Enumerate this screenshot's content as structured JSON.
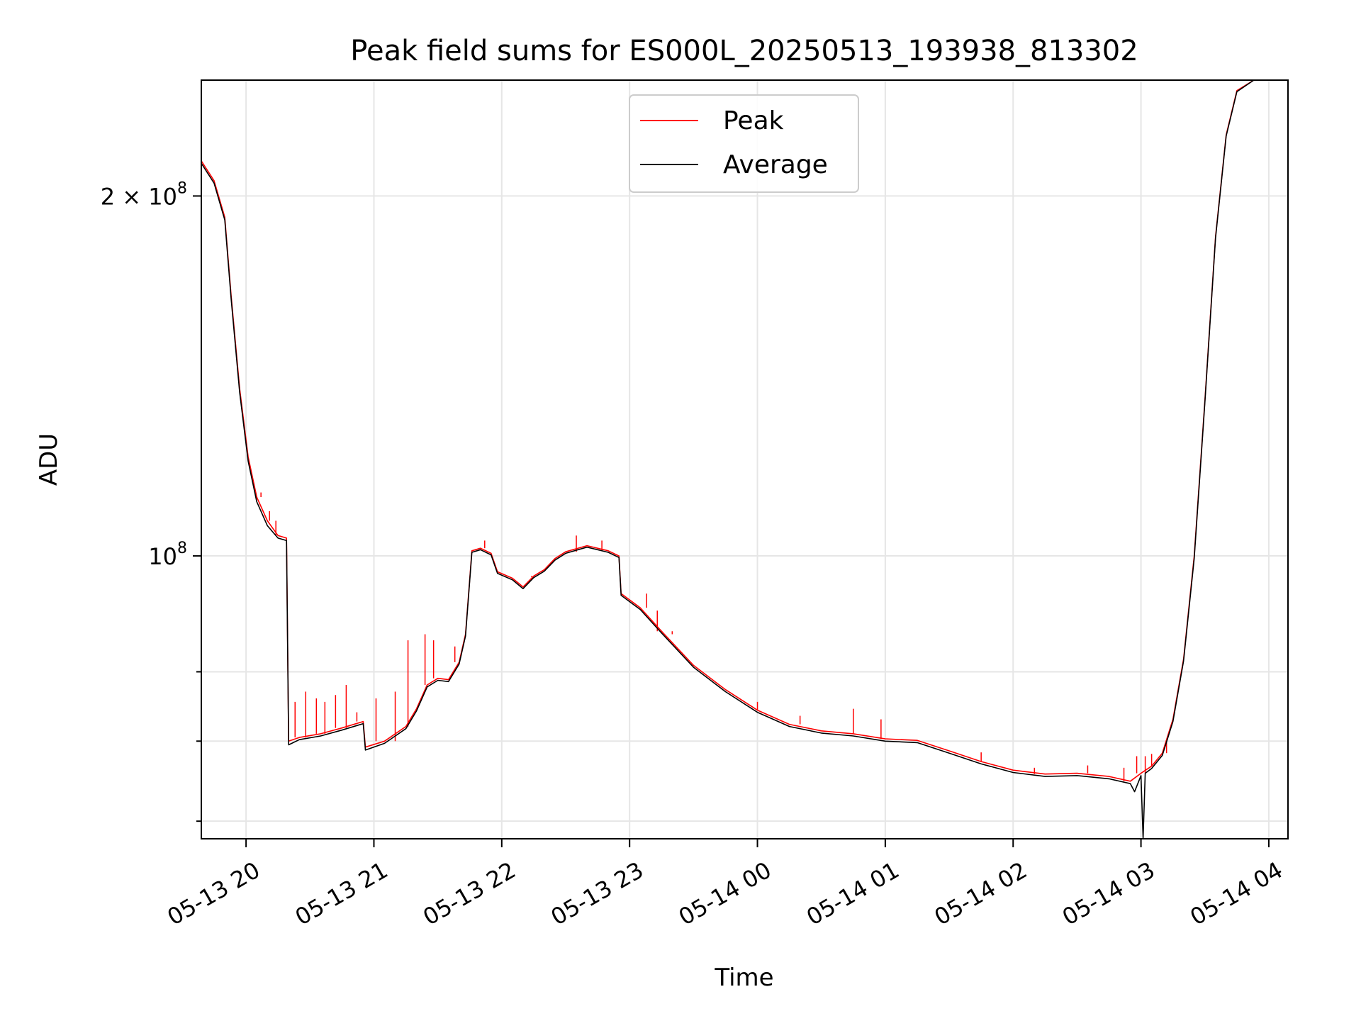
{
  "chart_data": {
    "type": "line",
    "title": "Peak field sums for ES000L_20250513_193938_813302",
    "xlabel": "Time",
    "ylabel": "ADU",
    "y_scale": "log",
    "grid": true,
    "legend_position": "top-center",
    "xlim": [
      "2025-05-13T19:39",
      "2025-05-14T04:09"
    ],
    "ylim": [
      58000000,
      250000000
    ],
    "x_ticks": [
      {
        "t": "2025-05-13T20:00",
        "label": "05-13 20"
      },
      {
        "t": "2025-05-13T21:00",
        "label": "05-13 21"
      },
      {
        "t": "2025-05-13T22:00",
        "label": "05-13 22"
      },
      {
        "t": "2025-05-13T23:00",
        "label": "05-13 23"
      },
      {
        "t": "2025-05-14T00:00",
        "label": "05-14 00"
      },
      {
        "t": "2025-05-14T01:00",
        "label": "05-14 01"
      },
      {
        "t": "2025-05-14T02:00",
        "label": "05-14 02"
      },
      {
        "t": "2025-05-14T03:00",
        "label": "05-14 03"
      },
      {
        "t": "2025-05-14T04:00",
        "label": "05-14 04"
      }
    ],
    "y_ticks": [
      {
        "value": 200000000,
        "base": "2 × 10",
        "exp": "8"
      },
      {
        "value": 100000000,
        "base": "10",
        "exp": "8"
      }
    ],
    "y_minor_ticks": [
      60000000,
      70000000,
      80000000
    ],
    "series": [
      {
        "name": "Peak",
        "color": "#ff0000",
        "points": [
          [
            "2025-05-13T19:39",
            214000000
          ],
          [
            "2025-05-13T19:45",
            206000000
          ],
          [
            "2025-05-13T19:50",
            192000000
          ],
          [
            "2025-05-13T19:53",
            165000000
          ],
          [
            "2025-05-13T19:57",
            138000000
          ],
          [
            "2025-05-13T20:01",
            121000000
          ],
          [
            "2025-05-13T20:05",
            112000000
          ],
          [
            "2025-05-13T20:10",
            107000000
          ],
          [
            "2025-05-13T20:15",
            104000000
          ],
          [
            "2025-05-13T20:19",
            103500000
          ],
          [
            "2025-05-13T20:20",
            70000000
          ],
          [
            "2025-05-13T20:25",
            70500000
          ],
          [
            "2025-05-13T20:35",
            71000000
          ],
          [
            "2025-05-13T20:45",
            71800000
          ],
          [
            "2025-05-13T20:55",
            72700000
          ],
          [
            "2025-05-13T20:56",
            69200000
          ],
          [
            "2025-05-13T21:05",
            70000000
          ],
          [
            "2025-05-13T21:15",
            72000000
          ],
          [
            "2025-05-13T21:20",
            74500000
          ],
          [
            "2025-05-13T21:25",
            78000000
          ],
          [
            "2025-05-13T21:30",
            79000000
          ],
          [
            "2025-05-13T21:35",
            78800000
          ],
          [
            "2025-05-13T21:40",
            81500000
          ],
          [
            "2025-05-13T21:43",
            86000000
          ],
          [
            "2025-05-13T21:46",
            101000000
          ],
          [
            "2025-05-13T21:50",
            101500000
          ],
          [
            "2025-05-13T21:55",
            100500000
          ],
          [
            "2025-05-13T21:58",
            97000000
          ],
          [
            "2025-05-13T22:05",
            95800000
          ],
          [
            "2025-05-13T22:10",
            94200000
          ],
          [
            "2025-05-13T22:15",
            96200000
          ],
          [
            "2025-05-13T22:20",
            97400000
          ],
          [
            "2025-05-13T22:25",
            99500000
          ],
          [
            "2025-05-13T22:30",
            100800000
          ],
          [
            "2025-05-13T22:40",
            102000000
          ],
          [
            "2025-05-13T22:50",
            101000000
          ],
          [
            "2025-05-13T22:55",
            100000000
          ],
          [
            "2025-05-13T22:56",
            93000000
          ],
          [
            "2025-05-13T23:05",
            90500000
          ],
          [
            "2025-05-13T23:15",
            86500000
          ],
          [
            "2025-05-13T23:30",
            81000000
          ],
          [
            "2025-05-13T23:45",
            77300000
          ],
          [
            "2025-05-14T00:00",
            74300000
          ],
          [
            "2025-05-14T00:15",
            72300000
          ],
          [
            "2025-05-14T00:30",
            71400000
          ],
          [
            "2025-05-14T00:45",
            71000000
          ],
          [
            "2025-05-14T01:00",
            70300000
          ],
          [
            "2025-05-14T01:15",
            70100000
          ],
          [
            "2025-05-14T01:30",
            68700000
          ],
          [
            "2025-05-14T01:45",
            67300000
          ],
          [
            "2025-05-14T02:00",
            66200000
          ],
          [
            "2025-05-14T02:15",
            65700000
          ],
          [
            "2025-05-14T02:30",
            65800000
          ],
          [
            "2025-05-14T02:45",
            65400000
          ],
          [
            "2025-05-14T02:55",
            64800000
          ],
          [
            "2025-05-14T03:00",
            65800000
          ],
          [
            "2025-05-14T03:05",
            66700000
          ],
          [
            "2025-05-14T03:10",
            68400000
          ],
          [
            "2025-05-14T03:15",
            73000000
          ],
          [
            "2025-05-14T03:20",
            82000000
          ],
          [
            "2025-05-14T03:25",
            100000000
          ],
          [
            "2025-05-14T03:30",
            135000000
          ],
          [
            "2025-05-14T03:35",
            185000000
          ],
          [
            "2025-05-14T03:40",
            225000000
          ],
          [
            "2025-05-14T03:45",
            245000000
          ],
          [
            "2025-05-14T03:53",
            250000000
          ]
        ]
      },
      {
        "name": "Average",
        "color": "#000000",
        "points": [
          [
            "2025-05-13T19:39",
            213000000
          ],
          [
            "2025-05-13T19:45",
            205000000
          ],
          [
            "2025-05-13T19:50",
            191000000
          ],
          [
            "2025-05-13T19:53",
            164000000
          ],
          [
            "2025-05-13T19:57",
            137000000
          ],
          [
            "2025-05-13T20:01",
            120000000
          ],
          [
            "2025-05-13T20:05",
            111000000
          ],
          [
            "2025-05-13T20:10",
            106000000
          ],
          [
            "2025-05-13T20:15",
            103500000
          ],
          [
            "2025-05-13T20:19",
            103000000
          ],
          [
            "2025-05-13T20:20",
            69500000
          ],
          [
            "2025-05-13T20:25",
            70200000
          ],
          [
            "2025-05-13T20:35",
            70700000
          ],
          [
            "2025-05-13T20:45",
            71500000
          ],
          [
            "2025-05-13T20:55",
            72400000
          ],
          [
            "2025-05-13T20:56",
            68800000
          ],
          [
            "2025-05-13T21:05",
            69700000
          ],
          [
            "2025-05-13T21:15",
            71700000
          ],
          [
            "2025-05-13T21:20",
            74200000
          ],
          [
            "2025-05-13T21:25",
            77700000
          ],
          [
            "2025-05-13T21:30",
            78700000
          ],
          [
            "2025-05-13T21:35",
            78500000
          ],
          [
            "2025-05-13T21:40",
            81200000
          ],
          [
            "2025-05-13T21:43",
            85700000
          ],
          [
            "2025-05-13T21:46",
            100700000
          ],
          [
            "2025-05-13T21:50",
            101200000
          ],
          [
            "2025-05-13T21:55",
            100200000
          ],
          [
            "2025-05-13T21:58",
            96700000
          ],
          [
            "2025-05-13T22:05",
            95500000
          ],
          [
            "2025-05-13T22:10",
            93900000
          ],
          [
            "2025-05-13T22:15",
            95900000
          ],
          [
            "2025-05-13T22:20",
            97100000
          ],
          [
            "2025-05-13T22:25",
            99200000
          ],
          [
            "2025-05-13T22:30",
            100500000
          ],
          [
            "2025-05-13T22:40",
            101700000
          ],
          [
            "2025-05-13T22:50",
            100700000
          ],
          [
            "2025-05-13T22:55",
            99700000
          ],
          [
            "2025-05-13T22:56",
            92700000
          ],
          [
            "2025-05-13T23:05",
            90200000
          ],
          [
            "2025-05-13T23:15",
            86200000
          ],
          [
            "2025-05-13T23:30",
            80700000
          ],
          [
            "2025-05-13T23:45",
            77000000
          ],
          [
            "2025-05-14T00:00",
            74000000
          ],
          [
            "2025-05-14T00:15",
            72000000
          ],
          [
            "2025-05-14T00:30",
            71100000
          ],
          [
            "2025-05-14T00:45",
            70700000
          ],
          [
            "2025-05-14T01:00",
            70000000
          ],
          [
            "2025-05-14T01:15",
            69800000
          ],
          [
            "2025-05-14T01:30",
            68400000
          ],
          [
            "2025-05-14T01:45",
            67000000
          ],
          [
            "2025-05-14T02:00",
            65900000
          ],
          [
            "2025-05-14T02:15",
            65400000
          ],
          [
            "2025-05-14T02:30",
            65500000
          ],
          [
            "2025-05-14T02:45",
            65100000
          ],
          [
            "2025-05-14T02:55",
            64500000
          ],
          [
            "2025-05-14T02:57",
            63500000
          ],
          [
            "2025-05-14T03:00",
            65500000
          ],
          [
            "2025-05-14T03:01",
            58000000
          ],
          [
            "2025-05-14T03:02",
            65800000
          ],
          [
            "2025-05-14T03:05",
            66400000
          ],
          [
            "2025-05-14T03:10",
            68100000
          ],
          [
            "2025-05-14T03:15",
            72700000
          ],
          [
            "2025-05-14T03:20",
            81700000
          ],
          [
            "2025-05-14T03:25",
            99500000
          ],
          [
            "2025-05-14T03:30",
            134500000
          ],
          [
            "2025-05-14T03:35",
            184500000
          ],
          [
            "2025-05-14T03:40",
            224500000
          ],
          [
            "2025-05-14T03:45",
            244500000
          ],
          [
            "2025-05-14T03:53",
            250000000
          ]
        ]
      }
    ],
    "peak_spikes": [
      [
        "2025-05-13T20:07",
        113000000
      ],
      [
        "2025-05-13T20:11",
        109000000
      ],
      [
        "2025-05-13T20:14",
        107000000
      ],
      [
        "2025-05-13T20:23",
        75500000
      ],
      [
        "2025-05-13T20:28",
        77000000
      ],
      [
        "2025-05-13T20:33",
        76000000
      ],
      [
        "2025-05-13T20:37",
        75500000
      ],
      [
        "2025-05-13T20:42",
        76500000
      ],
      [
        "2025-05-13T20:47",
        78000000
      ],
      [
        "2025-05-13T20:52",
        74000000
      ],
      [
        "2025-05-13T21:01",
        76000000
      ],
      [
        "2025-05-13T21:10",
        77000000
      ],
      [
        "2025-05-13T21:16",
        85000000
      ],
      [
        "2025-05-13T21:24",
        86000000
      ],
      [
        "2025-05-13T21:28",
        85000000
      ],
      [
        "2025-05-13T21:38",
        84000000
      ],
      [
        "2025-05-13T21:52",
        103000000
      ],
      [
        "2025-05-13T22:14",
        96000000
      ],
      [
        "2025-05-13T22:35",
        104000000
      ],
      [
        "2025-05-13T22:47",
        103000000
      ],
      [
        "2025-05-13T23:08",
        93000000
      ],
      [
        "2025-05-13T23:13",
        90000000
      ],
      [
        "2025-05-13T23:20",
        86000000
      ],
      [
        "2025-05-14T00:00",
        75500000
      ],
      [
        "2025-05-14T00:20",
        73500000
      ],
      [
        "2025-05-14T00:45",
        74500000
      ],
      [
        "2025-05-14T00:58",
        73000000
      ],
      [
        "2025-05-14T01:45",
        68500000
      ],
      [
        "2025-05-14T02:10",
        66500000
      ],
      [
        "2025-05-14T02:35",
        66800000
      ],
      [
        "2025-05-14T02:52",
        66500000
      ],
      [
        "2025-05-14T02:58",
        68000000
      ],
      [
        "2025-05-14T03:02",
        68000000
      ],
      [
        "2025-05-14T03:05",
        68300000
      ],
      [
        "2025-05-14T03:12",
        70000000
      ]
    ]
  }
}
